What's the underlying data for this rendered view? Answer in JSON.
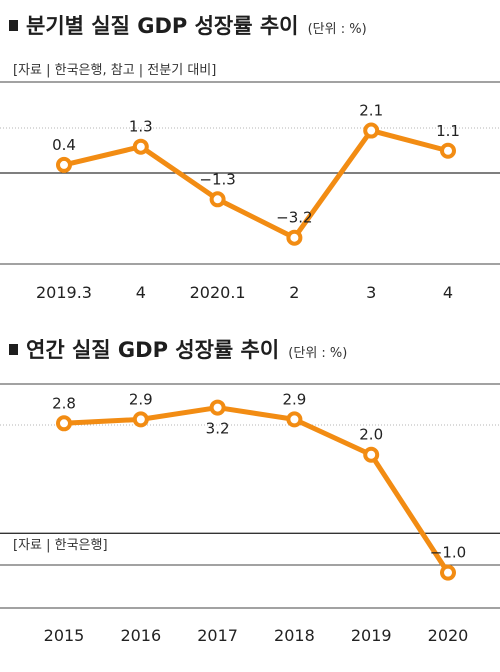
{
  "chart_data": [
    {
      "type": "line",
      "title": "분기별 실질 GDP 성장률 추이",
      "unit": "(단위 : %)",
      "source": "[자료 | 한국은행, 참고 | 전분기 대비]",
      "categories": [
        "2019.3",
        "4",
        "2020.1",
        "2",
        "3",
        "4"
      ],
      "series": [
        {
          "values": [
            0.4,
            1.3,
            -1.3,
            -3.2,
            2.1,
            1.1
          ]
        }
      ],
      "value_labels": [
        "0.4",
        "1.3",
        "−1.3",
        "−3.2",
        "2.1",
        "1.1"
      ],
      "ylim": [
        -4.5,
        4.5
      ],
      "grid": true,
      "line_color": "#f28c13"
    },
    {
      "type": "line",
      "title": "연간 실질 GDP 성장률 추이",
      "unit": "(단위 : %)",
      "source": "[자료 | 한국은행]",
      "categories": [
        "2015",
        "2016",
        "2017",
        "2018",
        "2019",
        "2020"
      ],
      "series": [
        {
          "values": [
            2.8,
            2.9,
            3.2,
            2.9,
            2.0,
            -1.0
          ]
        }
      ],
      "value_labels": [
        "2.8",
        "2.9",
        "3.2",
        "2.9",
        "2.0",
        "−1.0"
      ],
      "ylim": [
        -1.9,
        3.8
      ],
      "grid": true,
      "line_color": "#f28c13"
    }
  ]
}
